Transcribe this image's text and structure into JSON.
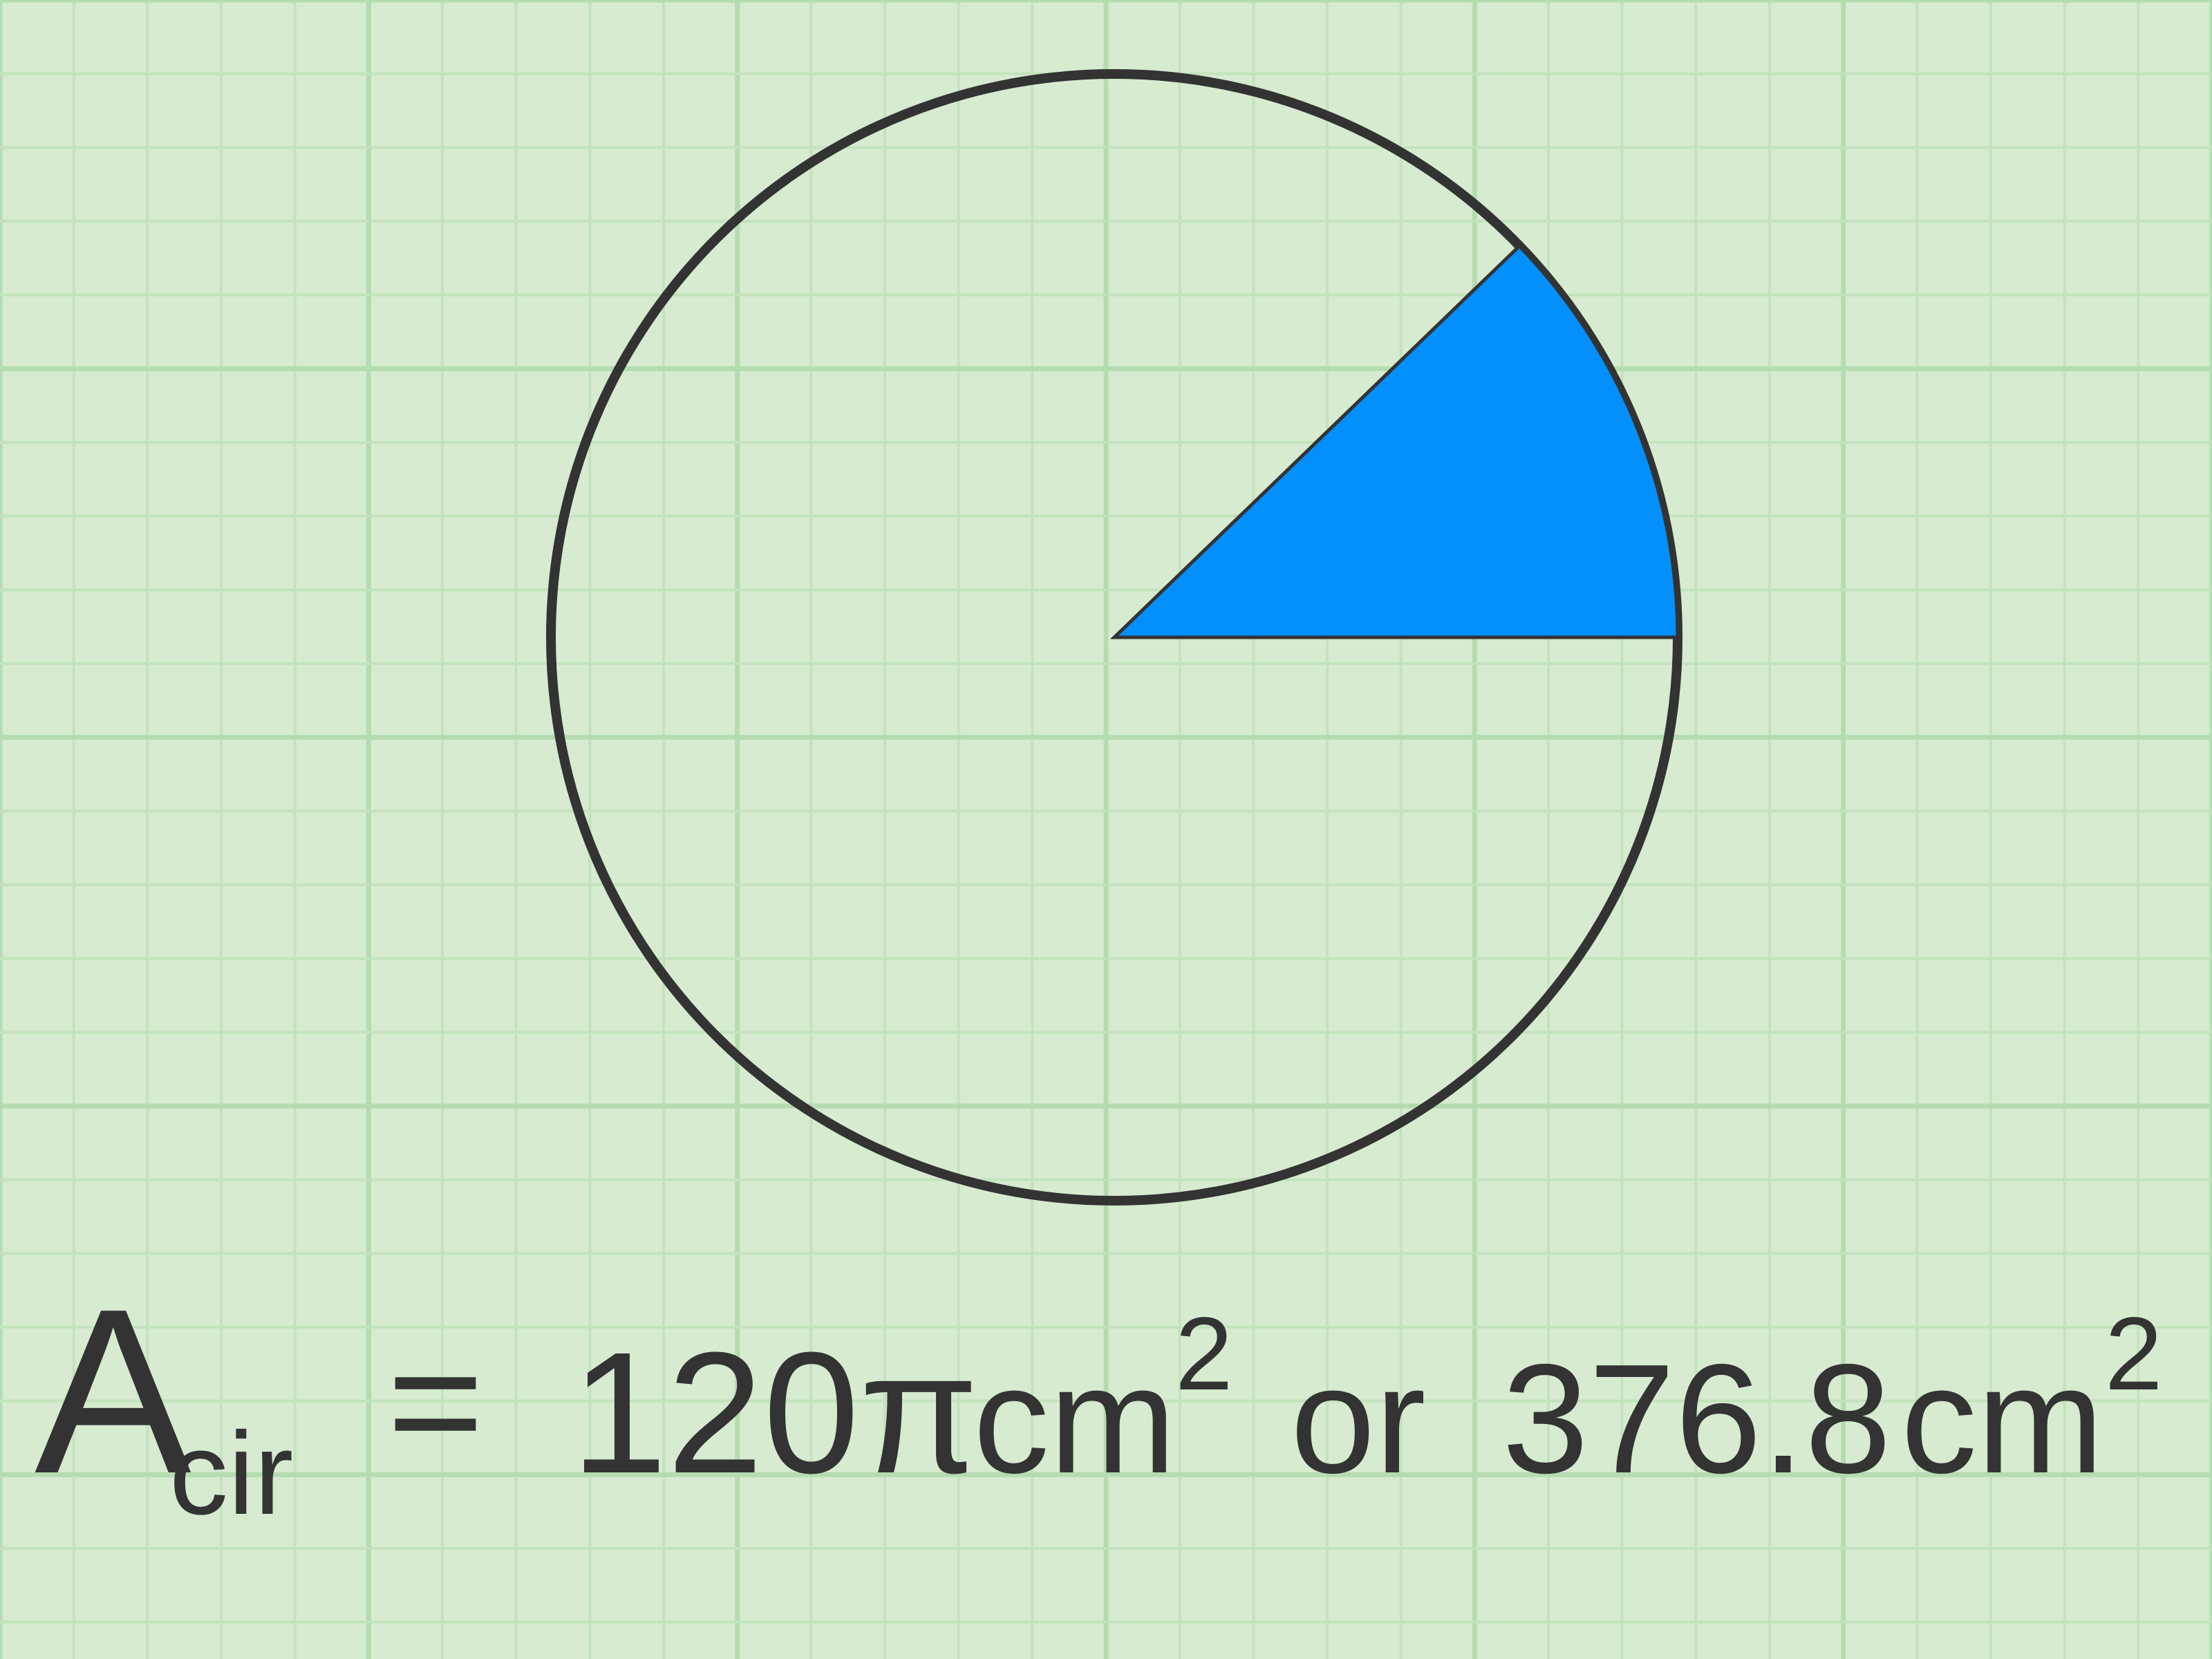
{
  "equation": {
    "symbol": "A",
    "subscript": "cir",
    "equals": "=",
    "value_exact": "120π",
    "unit_exact": "cm",
    "exponent_exact": "2",
    "connector": "or",
    "value_decimal": "376.8",
    "unit_decimal": "cm",
    "exponent_decimal": "2"
  }
}
